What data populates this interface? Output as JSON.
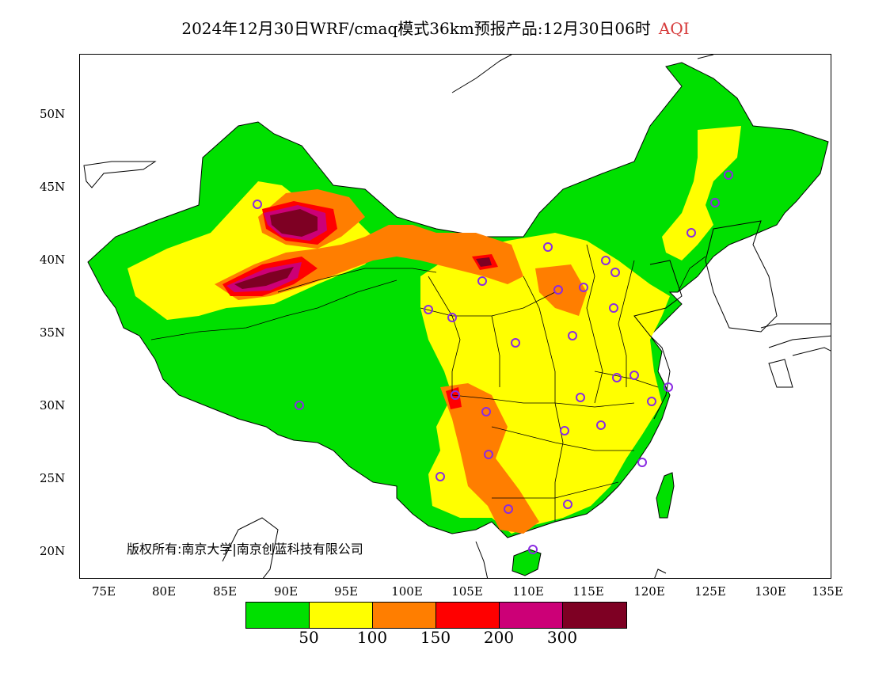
{
  "title": {
    "text": "2024年12月30日WRF/cmaq模式36km预报产品:12月30日06时",
    "variable": "AQI"
  },
  "copyright": "版权所有:南京大学|南京创蓝科技有限公司",
  "axes": {
    "lat_labels": [
      "50N",
      "45N",
      "40N",
      "35N",
      "30N",
      "25N",
      "20N"
    ],
    "lon_labels": [
      "75E",
      "80E",
      "85E",
      "90E",
      "95E",
      "100E",
      "105E",
      "110E",
      "115E",
      "120E",
      "125E",
      "130E",
      "135E"
    ]
  },
  "colors": {
    "c1": "#00e000",
    "c2": "#ffff00",
    "c3": "#ff7e00",
    "c4": "#ff0000",
    "c5": "#cc0077",
    "c6": "#7e0023",
    "station": "#8a2be2",
    "title_accent": "#d63a3a"
  },
  "legend": {
    "colors": [
      "#00e000",
      "#ffff00",
      "#ff7e00",
      "#ff0000",
      "#cc0077",
      "#7e0023"
    ],
    "labels": [
      "50",
      "100",
      "150",
      "200",
      "300"
    ]
  },
  "map": {
    "region": "China",
    "icons": [
      "station-circle-icon"
    ]
  }
}
